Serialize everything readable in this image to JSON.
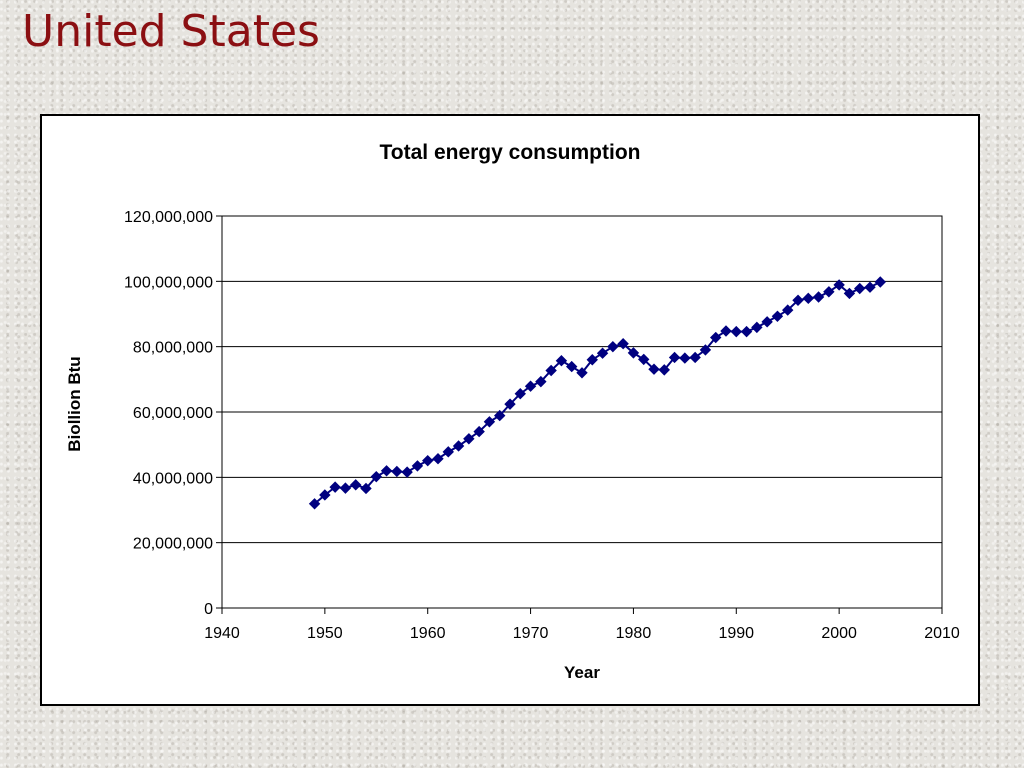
{
  "slide": {
    "title": "United States"
  },
  "colors": {
    "title": "#8b0f12",
    "series": "#000080",
    "grid": "#000000",
    "background": "#ffffff"
  },
  "chart_data": {
    "type": "line",
    "title": "Total energy consumption",
    "xlabel": "Year",
    "ylabel": "Biollion Btu",
    "xlim": [
      1940,
      2010
    ],
    "ylim": [
      0,
      120000000
    ],
    "x_ticks": [
      1940,
      1950,
      1960,
      1970,
      1980,
      1990,
      2000,
      2010
    ],
    "x_tick_labels": [
      "1940",
      "1950",
      "1960",
      "1970",
      "1980",
      "1990",
      "2000",
      "2010"
    ],
    "y_ticks": [
      0,
      20000000,
      40000000,
      60000000,
      80000000,
      100000000,
      120000000
    ],
    "y_tick_labels": [
      "0",
      "20,000,000",
      "40,000,000",
      "60,000,000",
      "80,000,000",
      "100,000,000",
      "120,000,000"
    ],
    "grid": "horizontal",
    "legend": "none",
    "marker": "diamond",
    "series": [
      {
        "x": [
          1949,
          1950,
          1951,
          1952,
          1953,
          1954,
          1955,
          1956,
          1957,
          1958,
          1959,
          1960,
          1961,
          1962,
          1963,
          1964,
          1965,
          1966,
          1967,
          1968,
          1969,
          1970,
          1971,
          1972,
          1973,
          1974,
          1975,
          1976,
          1977,
          1978,
          1979,
          1980,
          1981,
          1982,
          1983,
          1984,
          1985,
          1986,
          1987,
          1988,
          1989,
          1990,
          1991,
          1992,
          1993,
          1994,
          1995,
          1996,
          1997,
          1998,
          1999,
          2000,
          2001,
          2002,
          2003,
          2004
        ],
        "values": [
          31900000,
          34600000,
          37000000,
          36700000,
          37700000,
          36600000,
          40200000,
          42000000,
          41800000,
          41600000,
          43500000,
          45100000,
          45700000,
          47800000,
          49600000,
          51800000,
          54000000,
          57000000,
          58900000,
          62400000,
          65600000,
          67900000,
          69300000,
          72700000,
          75700000,
          73900000,
          72000000,
          76000000,
          78000000,
          80000000,
          80900000,
          78100000,
          76100000,
          73100000,
          72900000,
          76700000,
          76500000,
          76700000,
          79000000,
          82800000,
          84800000,
          84600000,
          84600000,
          85900000,
          87600000,
          89300000,
          91200000,
          94200000,
          94800000,
          95200000,
          96800000,
          98900000,
          96300000,
          97800000,
          98200000,
          99800000
        ]
      }
    ]
  }
}
